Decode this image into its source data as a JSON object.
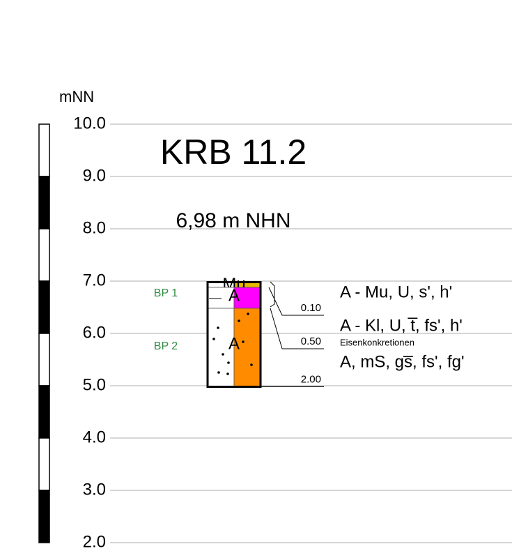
{
  "axis": {
    "label": "mNN",
    "ticks": [
      {
        "value": 10,
        "label": "10.0"
      },
      {
        "value": 9,
        "label": "9.0"
      },
      {
        "value": 8,
        "label": "8.0"
      },
      {
        "value": 7,
        "label": "7.0"
      },
      {
        "value": 6,
        "label": "6.0"
      },
      {
        "value": 5,
        "label": "5.0"
      },
      {
        "value": 4,
        "label": "4.0"
      },
      {
        "value": 3,
        "label": "3.0"
      },
      {
        "value": 2,
        "label": "2.0"
      }
    ]
  },
  "title": "KRB 11.2",
  "ground_level": {
    "value": 6.98,
    "label": "6,98 m NHN"
  },
  "layers": [
    {
      "depth": {
        "value": 0.1,
        "label": "0.10"
      },
      "code": "Mu",
      "description": "A - Mu, U, s', h'",
      "color": "#e8b800"
    },
    {
      "depth": {
        "value": 0.5,
        "label": "0.50"
      },
      "code": "A",
      "description": "A - Kl, U, t̅, fs', h'",
      "color": "#ff00ff"
    },
    {
      "depth": {
        "value": 2.0,
        "label": "2.00"
      },
      "code": "A",
      "note": "Eisenkonkretionen",
      "description": "A, mS, gs̅, fs', fg'",
      "color": "#ff8c00"
    }
  ],
  "samples": [
    "BP 1",
    "BP 2"
  ]
}
